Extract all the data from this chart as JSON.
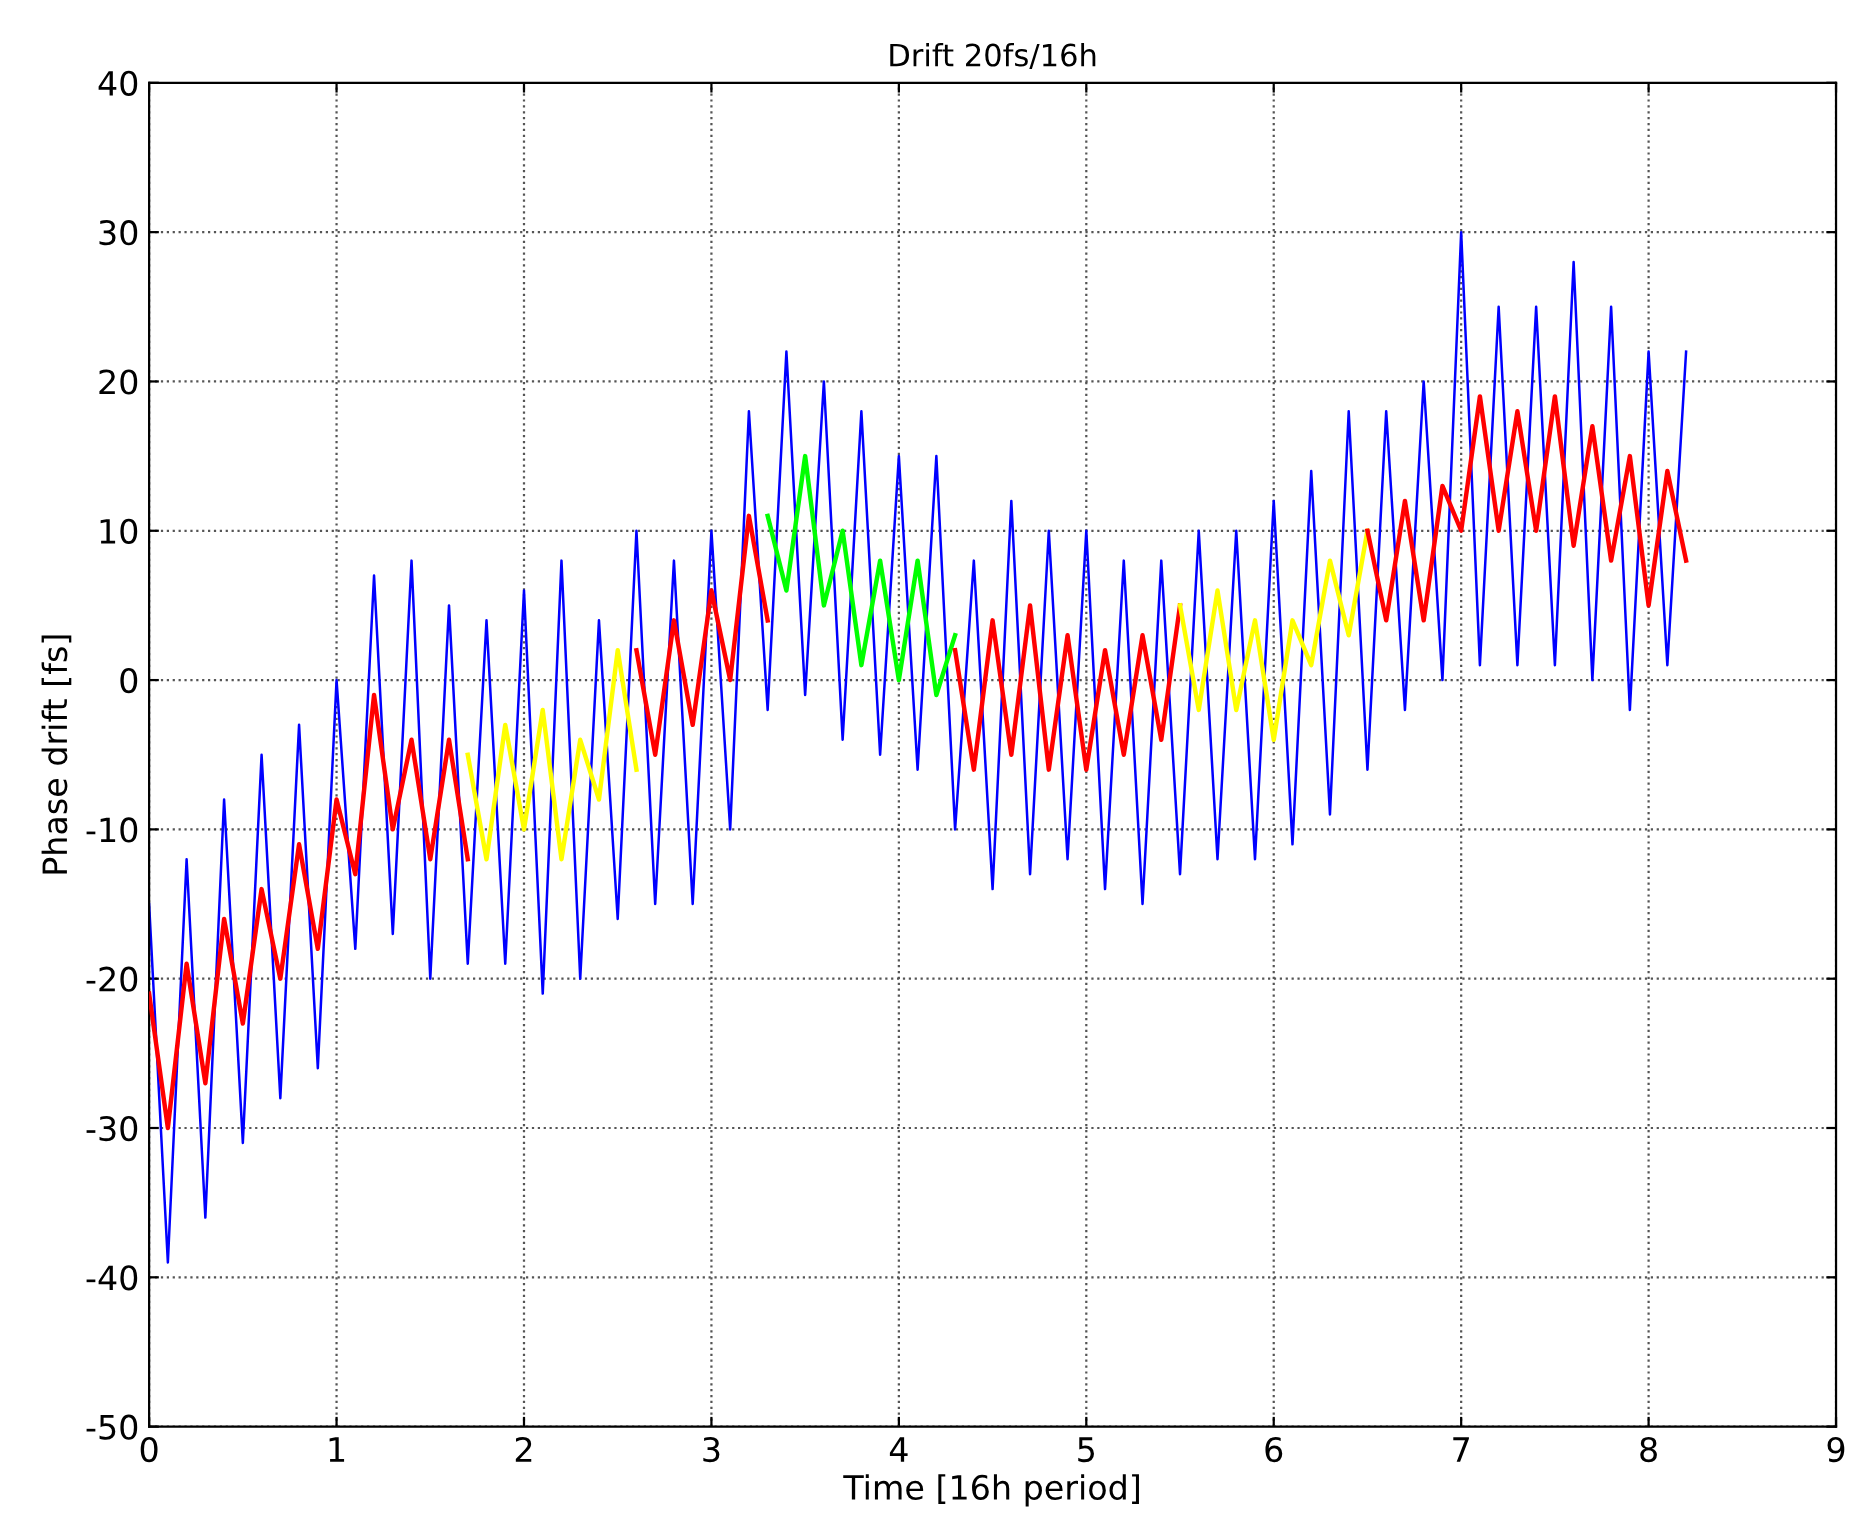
{
  "chart_data": {
    "type": "line",
    "title": "Drift 20fs/16h",
    "xlabel": "Time [16h period]",
    "ylabel": "Phase drift [fs]",
    "xlim": [
      0,
      9
    ],
    "xticks": [
      0,
      1,
      2,
      3,
      4,
      5,
      6,
      7,
      8,
      9
    ],
    "ylim": [
      -50,
      40
    ],
    "yticks": [
      -50,
      -40,
      -30,
      -20,
      -10,
      0,
      10,
      20,
      30,
      40
    ],
    "grid": true,
    "line_style": "solid",
    "series": [
      {
        "color": "#0000ff",
        "x": [
          0,
          0.1,
          0.2,
          0.3,
          0.4,
          0.5,
          0.6,
          0.7,
          0.8,
          0.9,
          1.0,
          1.1,
          1.2,
          1.3,
          1.4,
          1.5,
          1.6,
          1.7,
          1.8,
          1.9,
          2.0,
          2.1,
          2.2,
          2.3,
          2.4,
          2.5,
          2.6,
          2.7,
          2.8,
          2.9,
          3.0,
          3.1,
          3.2,
          3.3,
          3.4,
          3.5,
          3.6,
          3.7,
          3.8,
          3.9,
          4.0,
          4.1,
          4.2,
          4.3,
          4.4,
          4.5,
          4.6,
          4.7,
          4.8,
          4.9,
          5.0,
          5.1,
          5.2,
          5.3,
          5.4,
          5.5,
          5.6,
          5.7,
          5.8,
          5.9,
          6.0,
          6.1,
          6.2,
          6.3,
          6.4,
          6.5,
          6.6,
          6.7,
          6.8,
          6.9,
          7.0,
          7.1,
          7.2,
          7.3,
          7.4,
          7.5,
          7.6,
          7.7,
          7.8,
          7.9,
          8.0,
          8.1,
          8.2
        ],
        "values": [
          -15,
          -39,
          -12,
          -36,
          -8,
          -31,
          -5,
          -28,
          -3,
          -26,
          0,
          -18,
          7,
          -17,
          8,
          -20,
          5,
          -19,
          4,
          -19,
          6,
          -21,
          8,
          -20,
          4,
          -16,
          10,
          -15,
          8,
          -15,
          10,
          -10,
          18,
          -2,
          22,
          -1,
          20,
          -4,
          18,
          -5,
          15,
          -6,
          15,
          -10,
          8,
          -14,
          12,
          -13,
          10,
          -12,
          10,
          -14,
          8,
          -15,
          8,
          -13,
          10,
          -12,
          10,
          -12,
          12,
          -11,
          14,
          -9,
          18,
          -6,
          18,
          -2,
          20,
          0,
          30,
          1,
          25,
          1,
          25,
          1,
          28,
          0,
          25,
          -2,
          22,
          1,
          22
        ]
      },
      {
        "color": "#ff0000",
        "x": [
          0,
          0.1,
          0.2,
          0.3,
          0.4,
          0.5,
          0.6,
          0.7,
          0.8,
          0.9,
          1.0,
          1.1,
          1.2,
          1.3,
          1.4,
          1.5,
          1.6,
          1.7
        ],
        "values": [
          -21,
          -30,
          -19,
          -27,
          -16,
          -23,
          -14,
          -20,
          -11,
          -18,
          -8,
          -13,
          -1,
          -10,
          -4,
          -12,
          -4,
          -12
        ]
      },
      {
        "color": "#ffff00",
        "x": [
          1.7,
          1.8,
          1.9,
          2.0,
          2.1,
          2.2,
          2.3,
          2.4,
          2.5,
          2.6
        ],
        "values": [
          -5,
          -12,
          -3,
          -10,
          -2,
          -12,
          -4,
          -8,
          2,
          -6
        ]
      },
      {
        "color": "#ff0000",
        "x": [
          2.6,
          2.7,
          2.8,
          2.9,
          3.0,
          3.1,
          3.2,
          3.3
        ],
        "values": [
          2,
          -5,
          4,
          -3,
          6,
          0,
          11,
          4
        ]
      },
      {
        "color": "#00ff00",
        "x": [
          3.3,
          3.4,
          3.5,
          3.6,
          3.7,
          3.8,
          3.9,
          4.0,
          4.1,
          4.2,
          4.3
        ],
        "values": [
          11,
          6,
          15,
          5,
          10,
          1,
          8,
          0,
          8,
          -1,
          3
        ]
      },
      {
        "color": "#ff0000",
        "x": [
          4.3,
          4.4,
          4.5,
          4.6,
          4.7,
          4.8,
          4.9,
          5.0,
          5.1,
          5.2,
          5.3,
          5.4,
          5.5
        ],
        "values": [
          2,
          -6,
          4,
          -5,
          5,
          -6,
          3,
          -6,
          2,
          -5,
          3,
          -4,
          5
        ]
      },
      {
        "color": "#ffff00",
        "x": [
          5.5,
          5.6,
          5.7,
          5.8,
          5.9,
          6.0,
          6.1,
          6.2,
          6.3,
          6.4,
          6.5
        ],
        "values": [
          5,
          -2,
          6,
          -2,
          4,
          -4,
          4,
          1,
          8,
          3,
          10
        ]
      },
      {
        "color": "#ff0000",
        "x": [
          6.5,
          6.6,
          6.7,
          6.8,
          6.9,
          7.0,
          7.1,
          7.2,
          7.3,
          7.4,
          7.5,
          7.6,
          7.7,
          7.8,
          7.9,
          8.0,
          8.1,
          8.2
        ],
        "values": [
          10,
          4,
          12,
          4,
          13,
          10,
          19,
          10,
          18,
          10,
          19,
          9,
          17,
          8,
          15,
          5,
          14,
          8
        ]
      }
    ]
  }
}
